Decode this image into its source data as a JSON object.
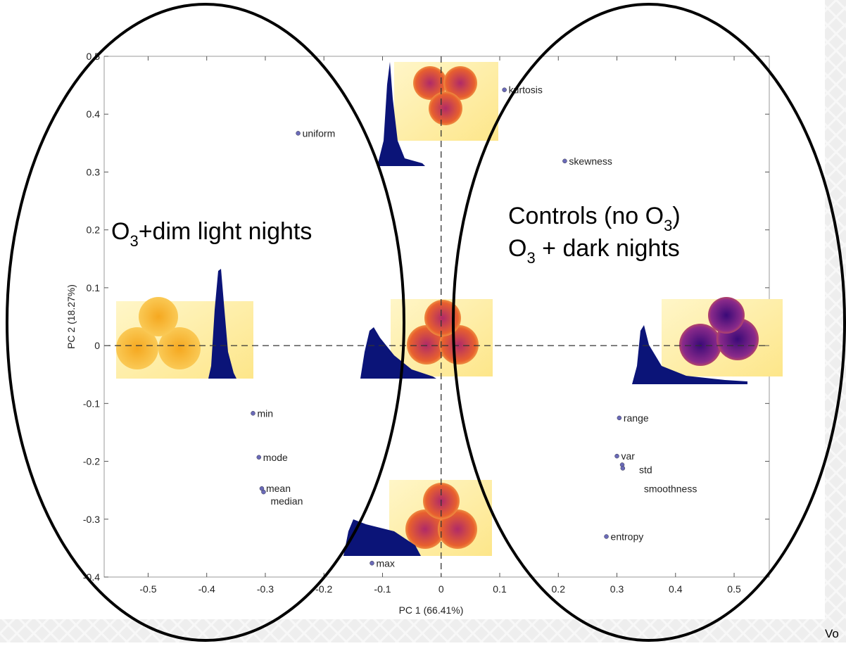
{
  "chart_data": {
    "type": "scatter",
    "x_label": "PC 1 (66.41%)",
    "y_label": "PC 2 (18.27%)",
    "point_color": "#6a6ab8",
    "points": [
      {
        "label": "kurtosis",
        "x": 0.108,
        "y": 0.442
      },
      {
        "label": "uniform",
        "x": -0.244,
        "y": 0.367
      },
      {
        "label": "skewness",
        "x": 0.211,
        "y": 0.319
      },
      {
        "label": "min",
        "x": -0.321,
        "y": -0.117
      },
      {
        "label": "mode",
        "x": -0.311,
        "y": -0.193
      },
      {
        "label": "mean",
        "x": -0.306,
        "y": -0.247
      },
      {
        "label": "median",
        "x": -0.303,
        "y": -0.253
      },
      {
        "label": "max",
        "x": -0.118,
        "y": -0.376
      },
      {
        "label": "range",
        "x": 0.304,
        "y": -0.125
      },
      {
        "label": "var",
        "x": 0.3,
        "y": -0.191
      },
      {
        "label": "std",
        "x": 0.309,
        "y": -0.206
      },
      {
        "label": "smoothness",
        "x": 0.31,
        "y": -0.212
      },
      {
        "label": "entropy",
        "x": 0.282,
        "y": -0.33
      }
    ],
    "xlim": [
      -0.575,
      0.56
    ],
    "ylim": [
      -0.4,
      0.5
    ],
    "xticks": [
      -0.5,
      -0.4,
      -0.3,
      -0.2,
      -0.1,
      0,
      0.1,
      0.2,
      0.3,
      0.4,
      0.5
    ],
    "yticks": [
      -0.4,
      -0.3,
      -0.2,
      -0.1,
      0,
      0.1,
      0.2,
      0.3,
      0.4,
      0.5
    ],
    "annotations": [
      {
        "lines": [
          [
            "O",
            "3",
            "+dim light nights"
          ]
        ]
      },
      {
        "lines": [
          [
            "Controls (no O",
            "3",
            ")"
          ],
          [
            "O",
            "3",
            " + dark nights"
          ]
        ]
      }
    ]
  },
  "corner_text": "Vo"
}
